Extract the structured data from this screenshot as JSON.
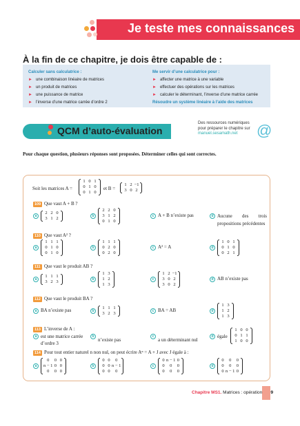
{
  "header": {
    "title": "Je teste mes connaissances"
  },
  "capable_title": "À la fin de ce chapitre, je dois être capable de :",
  "left": {
    "heading": "Calculer sans calculatrice :",
    "items": [
      "une combinaison linéaire de matrices",
      "un produit de matrices",
      "une puissance de matrice",
      "l’inverse d’une matrice carrée d’ordre 2"
    ]
  },
  "right": {
    "heading": "Me servir d’une calculatrice pour :",
    "items": [
      "affecter une matrice à une variable",
      "effectuer des opérations sur les matrices",
      "calculer le déterminant, l’inverse d’une matrice carrée"
    ],
    "link": "Résoudre un système linéaire à l’aide des matrices"
  },
  "qcm_title": "QCM d’auto-évaluation",
  "resources": {
    "l1": "Des ressources numériques",
    "l2": "pour préparer le chapitre sur",
    "url": "manuel.sesamath.net"
  },
  "instructions": "Pour chaque question, plusieurs réponses sont proposées. Déterminer celles qui sont correctes.",
  "intro": {
    "a": "Soit les matrices A =",
    "b": "et B =",
    "A": [
      [
        "1",
        "0",
        "1"
      ],
      [
        "0",
        "1",
        "0"
      ],
      [
        "0",
        "1",
        "0"
      ]
    ],
    "B": [
      [
        "1",
        "2",
        "−1"
      ],
      [
        "3",
        "0",
        "2"
      ]
    ]
  },
  "questions": [
    {
      "num": "109",
      "text": "Que vaut A + B ?",
      "a": [
        [
          "2",
          "2",
          "0"
        ],
        [
          "3",
          "1",
          "2"
        ]
      ],
      "b": [
        [
          "2",
          "2",
          "0"
        ],
        [
          "3",
          "1",
          "2"
        ],
        [
          "0",
          "1",
          "0"
        ]
      ],
      "c": "A + B n’existe pas",
      "d": "Aucune des trois propositions précédentes"
    },
    {
      "num": "110",
      "text": "Que vaut A² ?",
      "a": [
        [
          "1",
          "1",
          "1"
        ],
        [
          "0",
          "1",
          "0"
        ],
        [
          "0",
          "1",
          "0"
        ]
      ],
      "b": [
        [
          "1",
          "1",
          "1"
        ],
        [
          "0",
          "2",
          "0"
        ],
        [
          "0",
          "2",
          "0"
        ]
      ],
      "c": "A² = A",
      "d": [
        [
          "1",
          "0",
          "1"
        ],
        [
          "0",
          "1",
          "0"
        ],
        [
          "0",
          "2",
          "1"
        ]
      ]
    },
    {
      "num": "111",
      "text": "Que vaut le produit AB ?",
      "a": [
        [
          "1",
          "1",
          "1"
        ],
        [
          "3",
          "2",
          "3"
        ]
      ],
      "b": [
        [
          "1",
          "3"
        ],
        [
          "1",
          "2"
        ],
        [
          "1",
          "3"
        ]
      ],
      "c": [
        [
          "1",
          "2",
          "−1"
        ],
        [
          "3",
          "0",
          "2"
        ],
        [
          "3",
          "0",
          "2"
        ]
      ],
      "d": "AB n’existe pas"
    },
    {
      "num": "112",
      "text": "Que vaut le produit BA ?",
      "a": "BA n’existe pas",
      "b": [
        [
          "1",
          "1",
          "1"
        ],
        [
          "3",
          "2",
          "3"
        ]
      ],
      "c": "BA = AB",
      "d": [
        [
          "1",
          "3"
        ],
        [
          "1",
          "2"
        ],
        [
          "1",
          "3"
        ]
      ]
    },
    {
      "num": "113",
      "text": "L’inverse de A :",
      "a1": "est une matrice carrée",
      "a2": "d’ordre 3",
      "b": "n’existe pas",
      "c": "a un déterminant nul",
      "d": "égale",
      "dm": [
        [
          "1",
          "0",
          "0"
        ],
        [
          "0",
          "1",
          "1"
        ],
        [
          "1",
          "0",
          "0"
        ]
      ]
    },
    {
      "num": "114",
      "text": "Pour tout entier naturel n non nul, on peut écrire Aⁿ = A + J avec J égale à :",
      "a": [
        [
          "0",
          "0",
          "0"
        ],
        [
          "n − 1",
          "0",
          "0"
        ],
        [
          "0",
          "0",
          "0"
        ]
      ],
      "b": [
        [
          "0",
          "0",
          "0"
        ],
        [
          "0",
          "0",
          "n − 1"
        ],
        [
          "0",
          "0",
          "0"
        ]
      ],
      "c": [
        [
          "0",
          "n − 1",
          "0"
        ],
        [
          "0",
          "0",
          "0"
        ],
        [
          "0",
          "0",
          "0"
        ]
      ],
      "d": [
        [
          "0",
          "0",
          "0"
        ],
        [
          "0",
          "0",
          "0"
        ],
        [
          "0",
          "n − 1",
          "0"
        ]
      ]
    }
  ],
  "letters": [
    "a",
    "b",
    "c",
    "d"
  ],
  "footer": {
    "chapter": "Chapitre MS1.",
    "title": "Matrices : opérations",
    "page": "109"
  }
}
